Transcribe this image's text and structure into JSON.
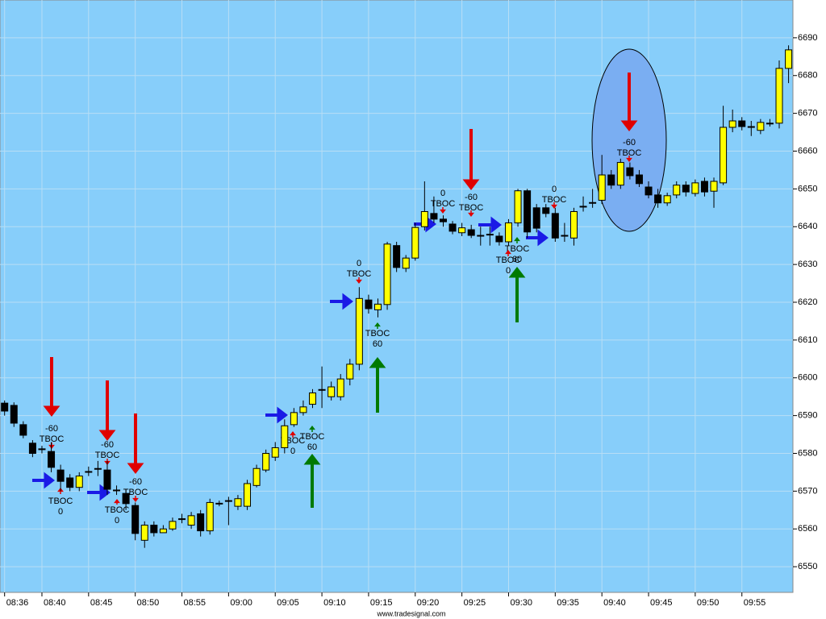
{
  "chart_data": {
    "type": "candlestick",
    "categories": [
      "08:36",
      null,
      null,
      null,
      "08:40",
      null,
      null,
      null,
      null,
      "08:45",
      null,
      null,
      null,
      null,
      "08:50",
      null,
      null,
      null,
      null,
      "08:55",
      null,
      null,
      null,
      null,
      "09:00",
      null,
      null,
      null,
      null,
      "09:05",
      null,
      null,
      null,
      null,
      "09:10",
      null,
      null,
      null,
      null,
      "09:15",
      null,
      null,
      null,
      null,
      "09:20",
      null,
      null,
      null,
      null,
      "09:25",
      null,
      null,
      null,
      null,
      "09:30",
      null,
      null,
      null,
      null,
      "09:35",
      null,
      null,
      null,
      null,
      "09:40",
      null,
      null,
      null,
      null,
      "09:45",
      null,
      null,
      null,
      null,
      "09:50",
      null,
      null,
      null,
      null,
      "09:55",
      null,
      null,
      null,
      null,
      null
    ],
    "open": [
      6593.3,
      6592.7,
      6587.6,
      6582.7,
      6581,
      6580.5,
      6575.6,
      6573.5,
      6571,
      6575,
      6575.8,
      6575.6,
      6570.3,
      6569.4,
      6566.2,
      6557,
      6561,
      6559,
      6560,
      6562.5,
      6561,
      6564,
      6559.5,
      6566.6,
      6567.5,
      6566,
      6566,
      6571.5,
      6575.6,
      6579,
      6581.5,
      6587.6,
      6590.8,
      6593,
      6596.7,
      6595,
      6595,
      6599.7,
      6603.6,
      6620.6,
      6618,
      6619.4,
      6635,
      6629,
      6631.7,
      6640,
      6643.5,
      6642,
      6640.7,
      6638.4,
      6639.2,
      6637.5,
      6638,
      6637.5,
      6636,
      6641,
      6649.5,
      6645,
      6645,
      6643.5,
      6637.5,
      6637,
      6645.2,
      6646.2,
      6647,
      6653.7,
      6651,
      6655.6,
      6653.7,
      6650.5,
      6648.4,
      6646.3,
      6648.4,
      6651,
      6648.8,
      6652,
      6649.4,
      6651.6,
      6666.3,
      6668,
      6666.3,
      6665.5,
      6667.2,
      6667.4,
      6681.9
    ],
    "high": [
      6594,
      6593.5,
      6588.5,
      6583.5,
      6582,
      6583,
      6577,
      6574.5,
      6575,
      6576.5,
      6578,
      6578,
      6571.5,
      6570.5,
      6567,
      6562,
      6562,
      6561,
      6563,
      6564,
      6564.5,
      6565,
      6568,
      6567.5,
      6568.5,
      6569,
      6573,
      6577,
      6581,
      6583,
      6589,
      6592,
      6594,
      6597,
      6603,
      6599,
      6601,
      6605,
      6624,
      6622,
      6621,
      6636,
      6636,
      6632.5,
      6641,
      6652,
      6648,
      6643,
      6641.5,
      6641,
      6640.5,
      6640,
      6640,
      6638.5,
      6642,
      6650,
      6650,
      6646,
      6646,
      6645,
      6641,
      6645,
      6648,
      6650,
      6659,
      6655,
      6658,
      6657,
      6655,
      6652,
      6650,
      6649,
      6652,
      6652,
      6652.5,
      6653,
      6653,
      6672,
      6671,
      6669,
      6668,
      6668.5,
      6668.5,
      6684,
      6688
    ],
    "low": [
      6590,
      6587,
      6584,
      6579,
      6580,
      6575,
      6570,
      6570,
      6570,
      6574,
      6574,
      6569,
      6569,
      6565,
      6557,
      6555,
      6558,
      6559,
      6559.5,
      6561.5,
      6560,
      6558,
      6558.5,
      6566,
      6561,
      6565,
      6565,
      6571,
      6575,
      6578,
      6580,
      6587,
      6590,
      6592,
      6592,
      6594,
      6594,
      6598,
      6602,
      6617,
      6616,
      6618,
      6628,
      6628,
      6631,
      6639,
      6641,
      6640,
      6638,
      6637.5,
      6637,
      6635,
      6635,
      6635,
      6635,
      6640,
      6637,
      6638.5,
      6642.5,
      6636,
      6636,
      6635,
      6644,
      6645,
      6646,
      6650,
      6650,
      6652.5,
      6650.5,
      6647.5,
      6645,
      6645.5,
      6647.5,
      6648,
      6648,
      6648,
      6645,
      6651,
      6665,
      6665.5,
      6664,
      6664.5,
      6666.5,
      6666,
      6678
    ],
    "close": [
      6591.2,
      6588,
      6584.8,
      6580,
      6581.2,
      6576.3,
      6572.6,
      6571,
      6574,
      6575.2,
      6576,
      6570.5,
      6570.1,
      6566.7,
      6558.8,
      6561,
      6559,
      6560,
      6562,
      6562.7,
      6563.5,
      6559.5,
      6567,
      6566.8,
      6567.3,
      6568,
      6572,
      6576,
      6580,
      6581.5,
      6587.3,
      6590.8,
      6592.3,
      6596,
      6596.9,
      6597.6,
      6599.7,
      6603.6,
      6621,
      6618.3,
      6619.5,
      6635.4,
      6629.2,
      6631.7,
      6639.8,
      6644,
      6642,
      6641.3,
      6638.8,
      6639.7,
      6637.7,
      6637.7,
      6637.8,
      6636,
      6641,
      6649.5,
      6638.6,
      6639.6,
      6643.5,
      6637,
      6637.7,
      6644,
      6645.4,
      6646.4,
      6653.7,
      6651,
      6657,
      6653.5,
      6651.4,
      6648.4,
      6646.3,
      6648.2,
      6651,
      6649.2,
      6651.6,
      6649.2,
      6652,
      6666.3,
      6668,
      6666.5,
      6666.5,
      6667.6,
      6667.4,
      6681.9,
      6686.8
    ],
    "up_color": "#ffff00",
    "down_color": "#000000",
    "background": "#87cefa",
    "ylim": [
      6543.2,
      6700
    ],
    "yticks": [
      6550,
      6560,
      6570,
      6580,
      6590,
      6600,
      6610,
      6620,
      6630,
      6640,
      6650,
      6660,
      6670,
      6680,
      6690
    ],
    "annotations": [
      [
        "-60",
        "TBOC"
      ],
      [
        "TBOC",
        "0"
      ],
      [
        "-60",
        "TBOC"
      ],
      [
        "TBOC",
        "0"
      ],
      [
        "-60",
        "TBOC"
      ],
      [
        "TBOC",
        "0"
      ],
      [
        "TBOC",
        "60"
      ],
      [
        "0",
        "TBOC"
      ],
      [
        "TBOC",
        "60"
      ],
      [
        "0",
        "TBOC"
      ],
      [
        "-60",
        "TBOC"
      ],
      [
        "TBOC",
        "0"
      ],
      [
        "TBOC",
        "60"
      ],
      [
        "0",
        "TBOC"
      ],
      [
        "-60",
        "TBOC"
      ]
    ],
    "footer": "www.tradesignal.com"
  }
}
